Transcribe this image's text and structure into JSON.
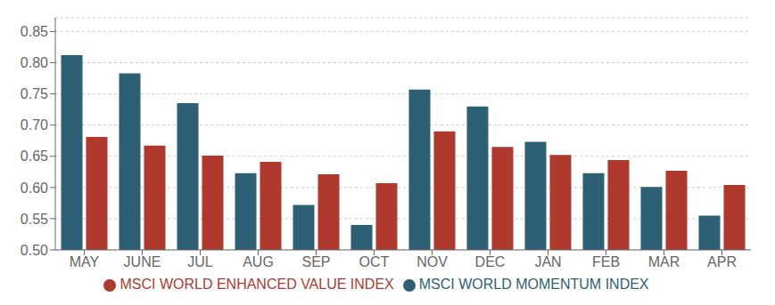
{
  "chart_data": {
    "type": "bar",
    "categories": [
      "MAY",
      "JUNE",
      "JUL",
      "AUG",
      "SEP",
      "OCT",
      "NOV",
      "DEC",
      "JAN",
      "FEB",
      "MAR",
      "APR"
    ],
    "series": [
      {
        "name": "MSCI WORLD MOMENTUM INDEX",
        "color": "#2d5f75",
        "values": [
          0.812,
          0.783,
          0.735,
          0.623,
          0.572,
          0.54,
          0.757,
          0.73,
          0.673,
          0.623,
          0.601,
          0.555
        ]
      },
      {
        "name": "MSCI WORLD ENHANCED VALUE INDEX",
        "color": "#b0392e",
        "values": [
          0.681,
          0.667,
          0.651,
          0.641,
          0.621,
          0.607,
          0.69,
          0.665,
          0.652,
          0.644,
          0.627,
          0.604
        ]
      }
    ],
    "ylim": [
      0.5,
      0.872
    ],
    "yticks": [
      {
        "value": 0.5,
        "label": "0.50"
      },
      0.55,
      {
        "value": 0.6,
        "label": "0.60"
      },
      0.65,
      {
        "value": 0.7,
        "label": "0.70"
      },
      0.75,
      {
        "value": 0.8,
        "label": "0.80"
      },
      0.85
    ],
    "grid": true,
    "legend": "bottom"
  }
}
